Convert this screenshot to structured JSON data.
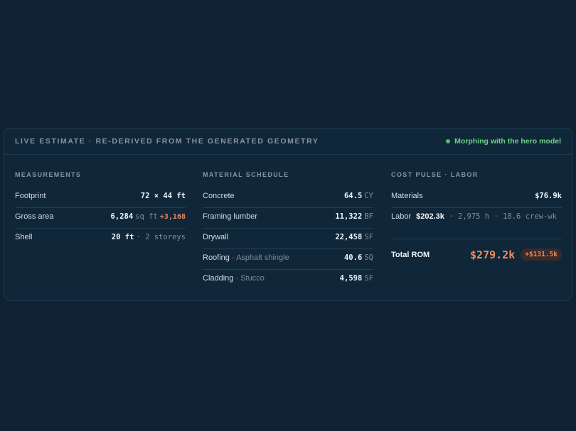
{
  "header": {
    "title": "LIVE ESTIMATE · RE-DERIVED FROM THE GENERATED GEOMETRY",
    "status": "Morphing with the hero model",
    "status_color": "#4fbf6f"
  },
  "measurements": {
    "title": "MEASUREMENTS",
    "footprint": {
      "label": "Footprint",
      "value": "72 × 44 ft"
    },
    "gross_area": {
      "label": "Gross area",
      "value": "6,284",
      "unit": "sq ft",
      "delta": "+3,168"
    },
    "shell": {
      "label": "Shell",
      "value": "20 ft",
      "detail": "· 2 storeys"
    }
  },
  "materials": {
    "title": "MATERIAL SCHEDULE",
    "rows": [
      {
        "label": "Concrete",
        "sub": "",
        "value": "64.5",
        "unit": "CY"
      },
      {
        "label": "Framing lumber",
        "sub": "",
        "value": "11,322",
        "unit": "BF"
      },
      {
        "label": "Drywall",
        "sub": "",
        "value": "22,458",
        "unit": "SF"
      },
      {
        "label": "Roofing",
        "sub": "· Asphalt shingle",
        "value": "40.6",
        "unit": "SQ"
      },
      {
        "label": "Cladding",
        "sub": "· Stucco",
        "value": "4,598",
        "unit": "SF"
      }
    ]
  },
  "cost": {
    "title": "COST PULSE · LABOR",
    "materials": {
      "label": "Materials",
      "value": "$76.9k"
    },
    "labor": {
      "label": "Labor",
      "value": "$202.3k",
      "detail": "· 2,975 h · 18.6 crew-wk"
    },
    "total": {
      "label": "Total ROM",
      "value": "$279.2k",
      "delta": "+$131.5k"
    },
    "accent_color": "#f08a5d"
  }
}
